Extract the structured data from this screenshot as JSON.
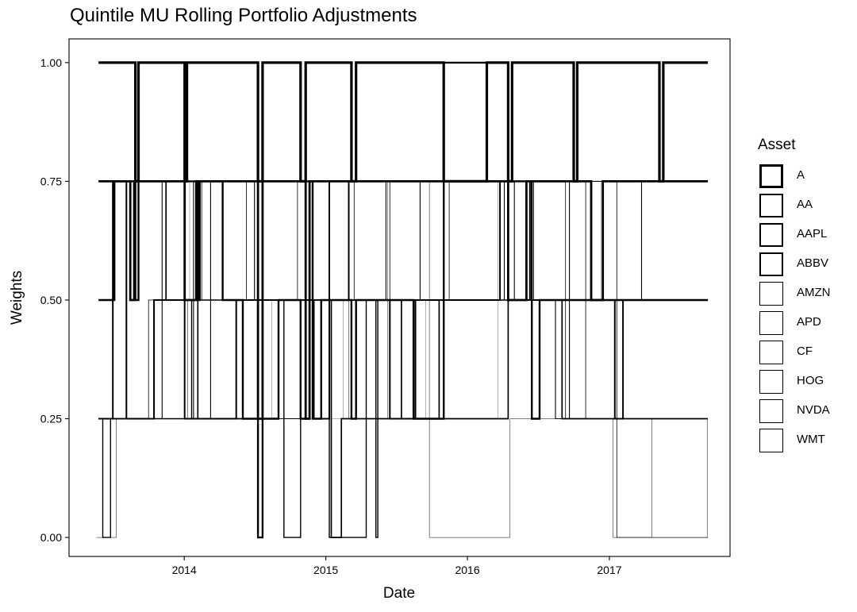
{
  "chart_data": {
    "type": "step",
    "title": "Quintile MU Rolling Portfolio Adjustments",
    "xlabel": "Date",
    "ylabel": "Weights",
    "xlim": [
      "2013-03-10",
      "2017-11-08"
    ],
    "ylim": [
      -0.04,
      1.05
    ],
    "x_ticks": [
      {
        "label": "2014",
        "date": "2014-01-01"
      },
      {
        "label": "2015",
        "date": "2015-01-01"
      },
      {
        "label": "2016",
        "date": "2016-01-01"
      },
      {
        "label": "2017",
        "date": "2017-01-01"
      }
    ],
    "y_ticks": [
      "0.00",
      "0.25",
      "0.50",
      "0.75",
      "1.00"
    ],
    "y_tick_values": [
      0,
      0.25,
      0.5,
      0.75,
      1.0
    ],
    "grid": false,
    "legend": {
      "title": "Asset",
      "position": "right",
      "items": [
        {
          "name": "A",
          "stroke_width": 3.2
        },
        {
          "name": "AA",
          "stroke_width": 2.8
        },
        {
          "name": "AAPL",
          "stroke_width": 2.4
        },
        {
          "name": "ABBV",
          "stroke_width": 2.0
        },
        {
          "name": "AMZN",
          "stroke_width": 1.7
        },
        {
          "name": "APD",
          "stroke_width": 1.4
        },
        {
          "name": "CF",
          "stroke_width": 1.1
        },
        {
          "name": "HOG",
          "stroke_width": 0.8
        },
        {
          "name": "NVDA",
          "stroke_width": 0.5
        },
        {
          "name": "WMT",
          "stroke_width": 0.3
        }
      ]
    },
    "series": [
      {
        "name": "A",
        "points": [
          [
            "2013-05-25",
            1.0
          ],
          [
            "2013-08-28",
            0.75
          ],
          [
            "2013-09-05",
            1.0
          ],
          [
            "2014-01-02",
            0.75
          ],
          [
            "2014-01-08",
            1.0
          ],
          [
            "2014-07-10",
            0.75
          ],
          [
            "2014-07-22",
            1.0
          ],
          [
            "2014-10-28",
            0.75
          ],
          [
            "2014-11-10",
            1.0
          ],
          [
            "2015-03-08",
            0.75
          ],
          [
            "2015-03-20",
            1.0
          ],
          [
            "2015-11-01",
            0.75
          ],
          [
            "2016-02-20",
            1.0
          ],
          [
            "2016-04-15",
            0.75
          ],
          [
            "2016-04-25",
            1.0
          ],
          [
            "2016-10-01",
            0.75
          ],
          [
            "2016-10-10",
            1.0
          ],
          [
            "2017-05-10",
            0.75
          ],
          [
            "2017-05-20",
            1.0
          ],
          [
            "2017-09-12",
            1.0
          ]
        ]
      },
      {
        "name": "AA",
        "points": [
          [
            "2013-05-25",
            0.75
          ],
          [
            "2013-08-15",
            0.5
          ],
          [
            "2013-08-25",
            0.75
          ],
          [
            "2014-01-02",
            0.5
          ],
          [
            "2014-02-01",
            0.75
          ],
          [
            "2014-04-05",
            0.75
          ],
          [
            "2014-07-10",
            0.25
          ],
          [
            "2014-07-22",
            0.75
          ],
          [
            "2014-11-10",
            0.25
          ],
          [
            "2014-11-20",
            0.75
          ],
          [
            "2015-06-15",
            0.75
          ],
          [
            "2015-11-01",
            0.75
          ],
          [
            "2016-04-15",
            0.5
          ],
          [
            "2016-06-01",
            0.75
          ],
          [
            "2016-11-15",
            0.5
          ],
          [
            "2016-12-15",
            0.75
          ],
          [
            "2017-09-12",
            0.75
          ]
        ]
      },
      {
        "name": "AAPL",
        "points": [
          [
            "2013-05-25",
            0.5
          ],
          [
            "2013-07-05",
            0.75
          ],
          [
            "2013-08-28",
            0.5
          ],
          [
            "2013-09-05",
            0.75
          ],
          [
            "2014-02-05",
            0.5
          ],
          [
            "2014-02-10",
            0.75
          ],
          [
            "2014-04-10",
            0.5
          ],
          [
            "2014-06-01",
            0.25
          ],
          [
            "2014-07-10",
            0.0
          ],
          [
            "2014-07-22",
            0.25
          ],
          [
            "2014-09-01",
            0.5
          ],
          [
            "2014-10-28",
            0.25
          ],
          [
            "2014-11-10",
            0.75
          ],
          [
            "2014-11-28",
            0.25
          ],
          [
            "2014-12-20",
            0.5
          ],
          [
            "2015-03-08",
            0.25
          ],
          [
            "2015-03-20",
            0.5
          ],
          [
            "2015-08-15",
            0.25
          ],
          [
            "2015-11-01",
            1.0
          ],
          [
            "2016-02-20",
            0.75
          ],
          [
            "2016-06-15",
            0.25
          ],
          [
            "2016-07-05",
            0.5
          ],
          [
            "2017-09-12",
            0.5
          ]
        ]
      },
      {
        "name": "ABBV",
        "points": [
          [
            "2013-05-25",
            0.25
          ],
          [
            "2013-06-25",
            0.25
          ],
          [
            "2013-07-01",
            0.75
          ],
          [
            "2013-08-05",
            0.25
          ],
          [
            "2013-10-15",
            0.5
          ],
          [
            "2014-01-02",
            0.25
          ],
          [
            "2014-05-15",
            0.5
          ],
          [
            "2014-11-15",
            0.5
          ],
          [
            "2014-12-01",
            0.25
          ],
          [
            "2015-01-10",
            0.75
          ],
          [
            "2015-03-01",
            0.5
          ],
          [
            "2015-06-15",
            0.25
          ],
          [
            "2015-08-20",
            0.5
          ],
          [
            "2016-03-25",
            0.75
          ],
          [
            "2016-06-10",
            0.5
          ],
          [
            "2017-01-15",
            0.25
          ],
          [
            "2017-02-05",
            0.5
          ],
          [
            "2017-09-12",
            0.5
          ]
        ]
      },
      {
        "name": "AMZN",
        "points": [
          [
            "2013-05-25",
            0.25
          ],
          [
            "2013-07-01",
            0.25
          ],
          [
            "2013-10-15",
            0.5
          ],
          [
            "2013-11-15",
            0.75
          ],
          [
            "2014-02-05",
            0.25
          ],
          [
            "2014-04-20",
            0.25
          ],
          [
            "2014-07-01",
            0.25
          ],
          [
            "2014-09-01",
            0.5
          ],
          [
            "2015-01-15",
            0.0
          ],
          [
            "2015-02-10",
            0.25
          ],
          [
            "2015-06-01",
            0.25
          ],
          [
            "2015-07-15",
            0.5
          ],
          [
            "2015-10-20",
            0.25
          ],
          [
            "2016-04-15",
            0.5
          ],
          [
            "2016-09-01",
            0.25
          ],
          [
            "2017-02-10",
            0.25
          ],
          [
            "2017-09-12",
            0.25
          ]
        ]
      },
      {
        "name": "APD",
        "points": [
          [
            "2013-05-25",
            0.25
          ],
          [
            "2013-06-05",
            0.0
          ],
          [
            "2013-06-25",
            0.25
          ],
          [
            "2013-09-10",
            0.25
          ],
          [
            "2014-01-20",
            0.5
          ],
          [
            "2014-06-15",
            0.5
          ],
          [
            "2014-09-15",
            0.0
          ],
          [
            "2014-10-28",
            0.5
          ],
          [
            "2015-01-10",
            0.0
          ],
          [
            "2015-04-15",
            0.5
          ],
          [
            "2015-05-10",
            0.0
          ],
          [
            "2015-05-15",
            0.5
          ],
          [
            "2017-04-10",
            0.5
          ]
        ]
      },
      {
        "name": "CF",
        "points": [
          [
            "2013-05-25",
            0.25
          ],
          [
            "2013-11-05",
            0.75
          ],
          [
            "2014-01-25",
            0.25
          ],
          [
            "2014-03-10",
            0.75
          ],
          [
            "2014-07-01",
            0.5
          ],
          [
            "2014-09-01",
            0.25
          ],
          [
            "2014-10-28",
            0.5
          ],
          [
            "2015-06-05",
            0.75
          ],
          [
            "2015-09-01",
            0.5
          ],
          [
            "2016-04-05",
            0.75
          ],
          [
            "2016-05-01",
            0.5
          ],
          [
            "2016-08-15",
            0.25
          ],
          [
            "2016-09-20",
            0.75
          ],
          [
            "2017-03-25",
            0.5
          ]
        ]
      },
      {
        "name": "HOG",
        "points": [
          [
            "2013-06-05",
            0.25
          ],
          [
            "2013-10-01",
            0.5
          ],
          [
            "2014-02-15",
            0.75
          ],
          [
            "2014-06-10",
            0.5
          ],
          [
            "2014-10-20",
            0.75
          ],
          [
            "2015-03-15",
            0.5
          ],
          [
            "2015-06-15",
            0.75
          ],
          [
            "2015-11-15",
            0.5
          ],
          [
            "2016-06-20",
            0.75
          ],
          [
            "2016-09-10",
            0.25
          ],
          [
            "2016-11-01",
            0.75
          ],
          [
            "2017-01-20",
            0.0
          ],
          [
            "2017-09-12",
            0.0
          ]
        ]
      },
      {
        "name": "NVDA",
        "points": [
          [
            "2013-05-20",
            0.0
          ],
          [
            "2013-07-10",
            0.25
          ],
          [
            "2014-01-10",
            0.5
          ],
          [
            "2014-05-05",
            0.5
          ],
          [
            "2015-03-01",
            0.25
          ],
          [
            "2015-06-10",
            0.75
          ],
          [
            "2015-09-25",
            0.0
          ],
          [
            "2016-04-20",
            0.25
          ],
          [
            "2016-08-10",
            0.25
          ],
          [
            "2016-10-20",
            0.25
          ],
          [
            "2017-01-10",
            0.0
          ],
          [
            "2017-04-20",
            0.25
          ],
          [
            "2017-09-10",
            0.0
          ]
        ]
      },
      {
        "name": "WMT",
        "points": [
          [
            "2013-06-10",
            0.75
          ],
          [
            "2014-01-15",
            0.5
          ],
          [
            "2014-08-15",
            0.25
          ],
          [
            "2015-02-15",
            0.5
          ],
          [
            "2015-09-15",
            0.25
          ],
          [
            "2016-03-20",
            0.75
          ],
          [
            "2016-12-10",
            0.5
          ],
          [
            "2017-09-12",
            0.5
          ]
        ]
      }
    ]
  }
}
